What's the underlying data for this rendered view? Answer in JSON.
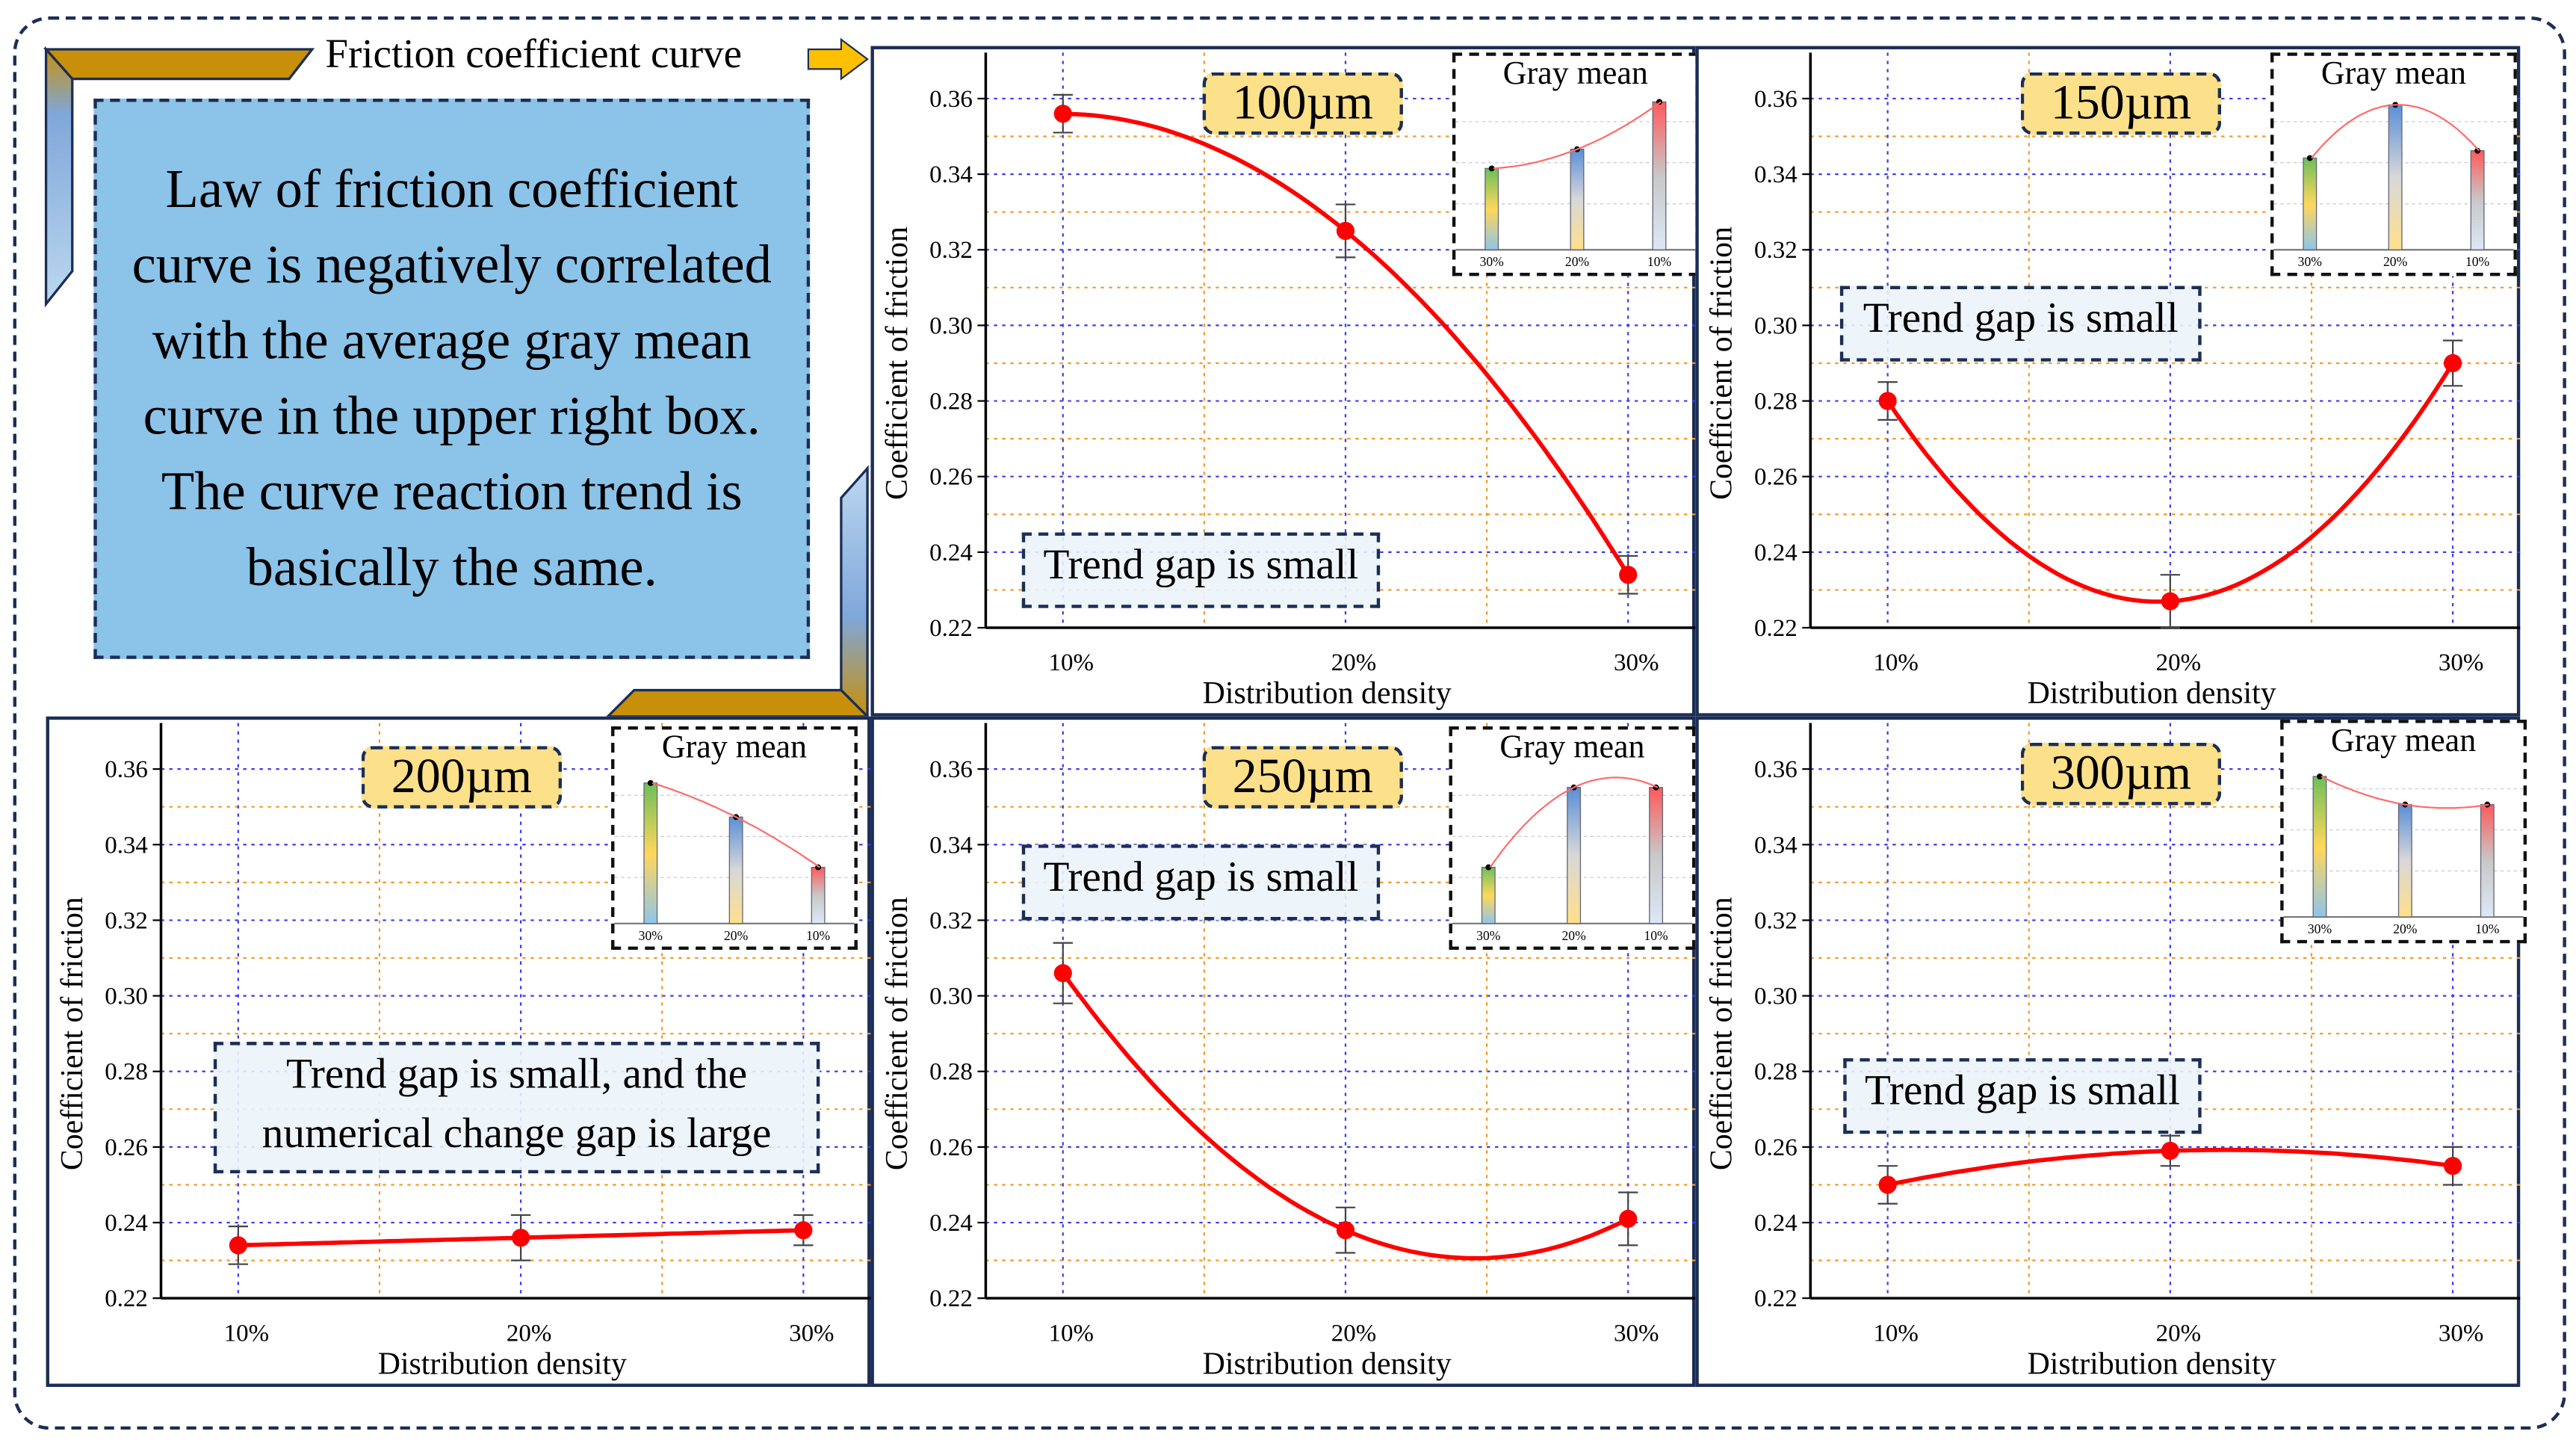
{
  "header": {
    "title": "Friction coefficient curve"
  },
  "summary": {
    "text": "Law of friction coefficient curve is negatively correlated with the average gray mean curve in the upper right box. The curve reaction trend is basically the same."
  },
  "colors": {
    "accent_gold": "#c8900a",
    "box_blue": "#8cc3e8",
    "badge_yellow": "#fde08a",
    "curve_red": "#ff0000",
    "frame_navy": "#1c2e55"
  },
  "chart_data": [
    {
      "type": "line",
      "title": "100µm",
      "xlabel": "Distribution density",
      "ylabel": "Coefficient of friction",
      "categories": [
        "10%",
        "20%",
        "30%"
      ],
      "values": [
        0.356,
        0.325,
        0.234
      ],
      "errors": [
        0.005,
        0.007,
        0.005
      ],
      "ylim": [
        0.22,
        0.37
      ],
      "yticks": [
        "0.22",
        "0.24",
        "0.26",
        "0.28",
        "0.30",
        "0.32",
        "0.34",
        "0.36"
      ],
      "grid": true,
      "annotation": "Trend gap is small",
      "inset": {
        "title": "Gray mean",
        "categories": [
          "30%",
          "20%",
          "10%"
        ],
        "relative_values": [
          0.55,
          0.68,
          1.0
        ]
      }
    },
    {
      "type": "line",
      "title": "150µm",
      "xlabel": "Distribution density",
      "ylabel": "Coefficient of friction",
      "categories": [
        "10%",
        "20%",
        "30%"
      ],
      "values": [
        0.28,
        0.227,
        0.29
      ],
      "errors": [
        0.005,
        0.007,
        0.006
      ],
      "ylim": [
        0.22,
        0.37
      ],
      "yticks": [
        "0.22",
        "0.24",
        "0.26",
        "0.28",
        "0.30",
        "0.32",
        "0.34",
        "0.36"
      ],
      "grid": true,
      "annotation": "Trend gap is small",
      "inset": {
        "title": "Gray mean",
        "categories": [
          "30%",
          "20%",
          "10%"
        ],
        "relative_values": [
          0.62,
          0.98,
          0.67
        ]
      }
    },
    {
      "type": "line",
      "title": "200µm",
      "xlabel": "Distribution density",
      "ylabel": "Coefficient of friction",
      "categories": [
        "10%",
        "20%",
        "30%"
      ],
      "values": [
        0.234,
        0.236,
        0.238
      ],
      "errors": [
        0.005,
        0.006,
        0.004
      ],
      "ylim": [
        0.22,
        0.37
      ],
      "yticks": [
        "0.22",
        "0.24",
        "0.26",
        "0.28",
        "0.30",
        "0.32",
        "0.34",
        "0.36"
      ],
      "grid": true,
      "annotation": "Trend gap is small, and the numerical change gap is large",
      "annotation_lines": [
        "Trend gap is small, and the",
        "numerical change gap is large"
      ],
      "inset": {
        "title": "Gray mean",
        "categories": [
          "30%",
          "20%",
          "10%"
        ],
        "relative_values": [
          0.95,
          0.72,
          0.38
        ]
      }
    },
    {
      "type": "line",
      "title": "250µm",
      "xlabel": "Distribution density",
      "ylabel": "Coefficient of friction",
      "categories": [
        "10%",
        "20%",
        "30%"
      ],
      "values": [
        0.306,
        0.238,
        0.241
      ],
      "errors": [
        0.008,
        0.006,
        0.007
      ],
      "ylim": [
        0.22,
        0.37
      ],
      "yticks": [
        "0.22",
        "0.24",
        "0.26",
        "0.28",
        "0.30",
        "0.32",
        "0.34",
        "0.36"
      ],
      "grid": true,
      "annotation": "Trend gap is small",
      "inset": {
        "title": "Gray mean",
        "categories": [
          "30%",
          "20%",
          "10%"
        ],
        "relative_values": [
          0.38,
          0.92,
          0.92
        ]
      }
    },
    {
      "type": "line",
      "title": "300µm",
      "xlabel": "Distribution density",
      "ylabel": "Coefficient of friction",
      "categories": [
        "10%",
        "20%",
        "30%"
      ],
      "values": [
        0.25,
        0.259,
        0.255
      ],
      "errors": [
        0.005,
        0.004,
        0.005
      ],
      "ylim": [
        0.22,
        0.37
      ],
      "yticks": [
        "0.22",
        "0.24",
        "0.26",
        "0.28",
        "0.30",
        "0.32",
        "0.34",
        "0.36"
      ],
      "grid": true,
      "annotation": "Trend gap is small",
      "inset": {
        "title": "Gray mean",
        "categories": [
          "30%",
          "20%",
          "10%"
        ],
        "relative_values": [
          0.95,
          0.76,
          0.76
        ]
      }
    }
  ]
}
